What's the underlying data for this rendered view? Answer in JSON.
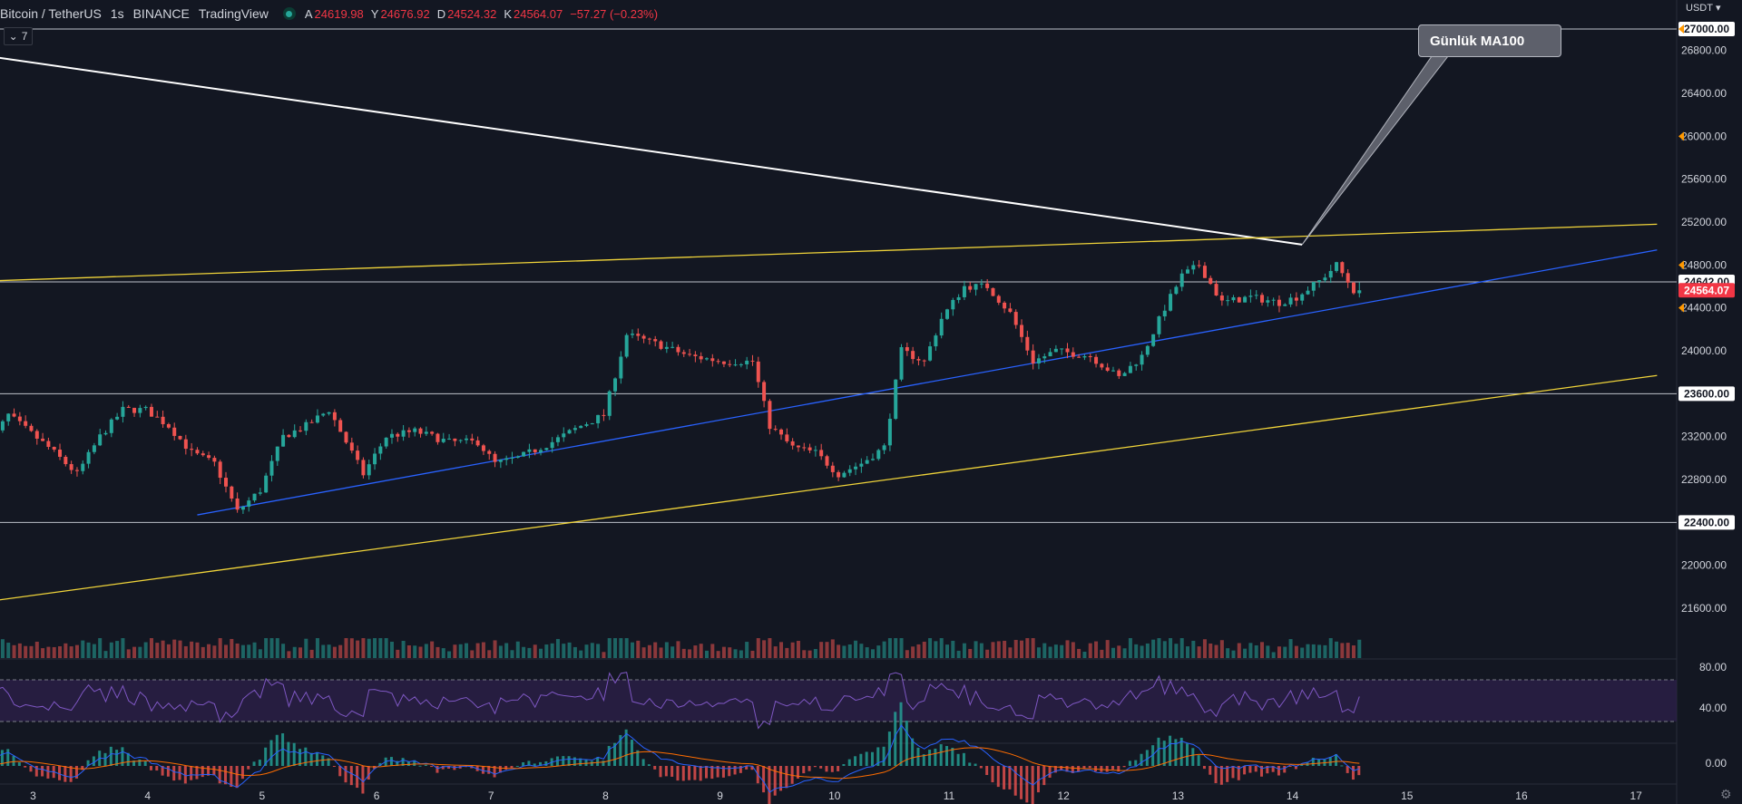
{
  "header": {
    "symbol": "Bitcoin / TetherUS",
    "interval": "1s",
    "exchange": "BINANCE",
    "source": "TradingView",
    "ohlc": [
      {
        "key": "A",
        "value": "24619.98"
      },
      {
        "key": "Y",
        "value": "24676.92"
      },
      {
        "key": "D",
        "value": "24524.32"
      },
      {
        "key": "K",
        "value": "24564.07"
      }
    ],
    "change": "−57.27 (−0.23%)"
  },
  "indicators_toggle": "7",
  "price_axis": {
    "currency": "USDT",
    "ticks": [
      "26800.00",
      "26400.00",
      "26000.00",
      "25600.00",
      "25200.00",
      "24800.00",
      "24400.00",
      "24000.00",
      "23600.00",
      "23200.00",
      "22800.00",
      "22400.00",
      "22000.00",
      "21600.00"
    ],
    "labels": [
      {
        "text": "27000.00",
        "style": "white"
      },
      {
        "text": "24642.00",
        "style": "white"
      },
      {
        "text": "24564.07",
        "style": "red"
      },
      {
        "text": "23600.00",
        "style": "white"
      },
      {
        "text": "22400.00",
        "style": "white"
      }
    ]
  },
  "rsi_axis": [
    "80.00",
    "40.00"
  ],
  "macd_axis": [
    "0.00"
  ],
  "time_axis": [
    "3",
    "4",
    "5",
    "6",
    "7",
    "8",
    "9",
    "10",
    "11",
    "12",
    "13",
    "14",
    "15",
    "16",
    "17"
  ],
  "annotation": {
    "text": "Günlük MA100"
  },
  "colors": {
    "background": "#131722",
    "up": "#26a69a",
    "down": "#ef5350",
    "trendline_yellow": "#f0d43a",
    "trendline_blue": "#2962ff",
    "ma_line": "#ffffff",
    "rsi_line": "#7e57c2",
    "rsi_band": "#2a1f45",
    "last_price": "#f23645"
  },
  "chart_data": {
    "type": "candlestick",
    "title": "Bitcoin / TetherUS",
    "y_range": [
      21400,
      27100
    ],
    "x_range_days": [
      2.6,
      17.3
    ],
    "candles": [],
    "trend_lines": [
      {
        "name": "MA100 (daily)",
        "x": [
          2.6,
          14.1
        ],
        "y": [
          26750,
          24990
        ]
      },
      {
        "name": "upper channel",
        "x": [
          2.6,
          17.2
        ],
        "y": [
          24650,
          25180
        ]
      },
      {
        "name": "lower channel",
        "x": [
          2.6,
          17.2
        ],
        "y": [
          21660,
          23770
        ]
      },
      {
        "name": "blue support",
        "x": [
          4.45,
          17.2
        ],
        "y": [
          22470,
          24940
        ]
      }
    ],
    "horizontal_lines": [
      27000,
      24642,
      23600,
      22400
    ],
    "last_price": 24564.07,
    "rsi_levels": [
      70,
      30
    ]
  }
}
